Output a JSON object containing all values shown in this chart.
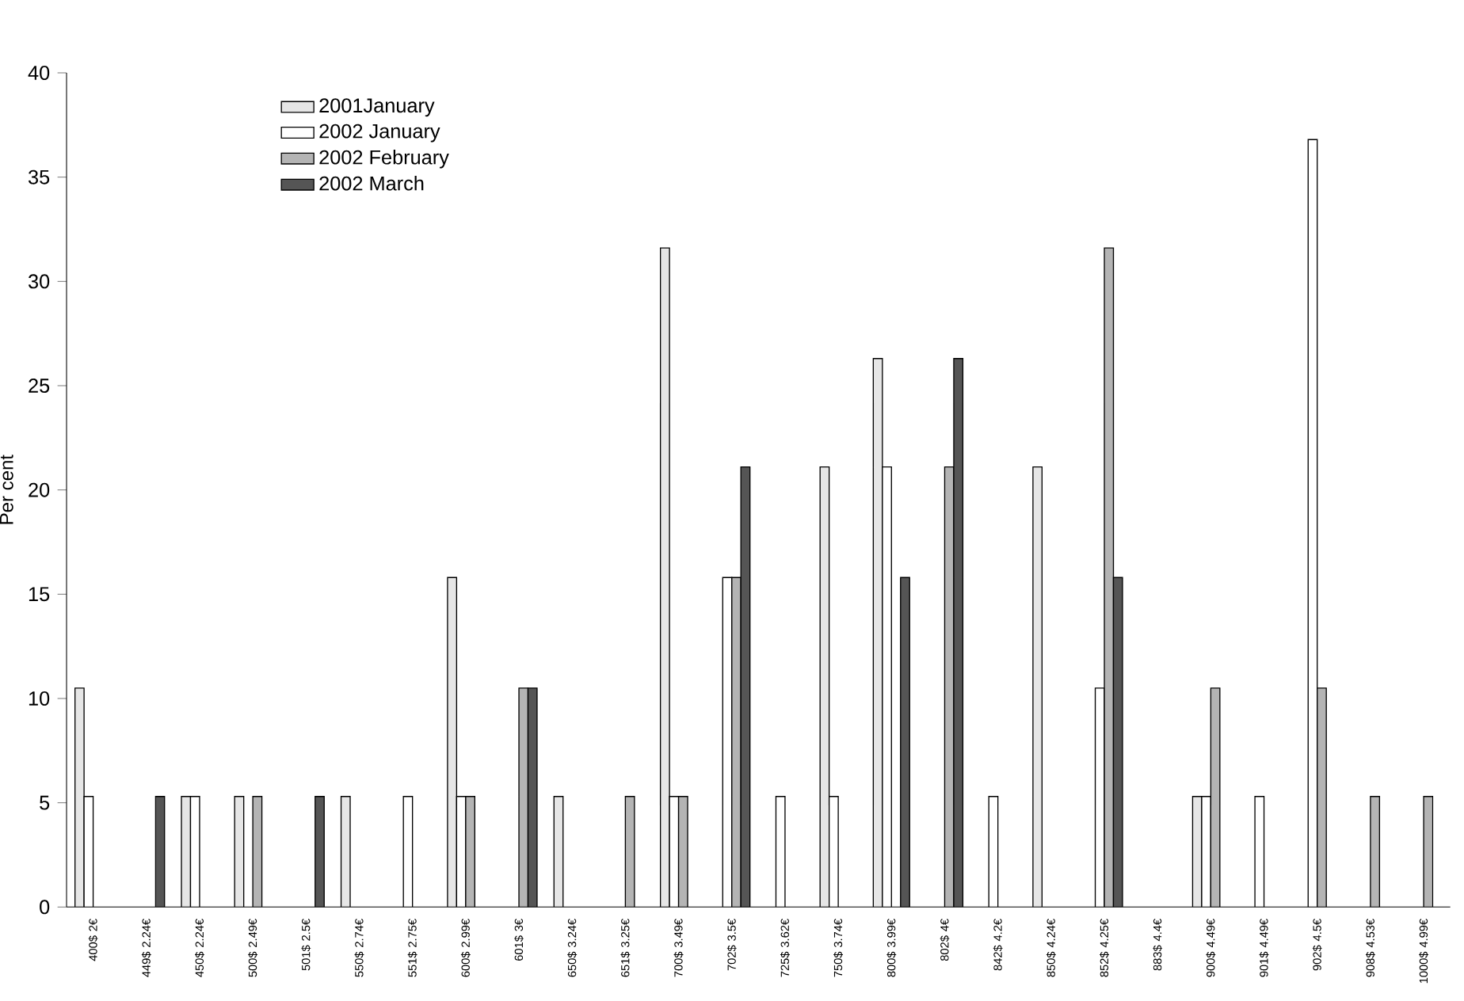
{
  "chart_data": {
    "type": "bar",
    "ylabel": "Per cent",
    "categories": [
      "400$ 2€",
      "449$ 2.24€",
      "450$ 2.24€",
      "500$ 2.49€",
      "501$ 2.5€",
      "550$ 2.74€",
      "551$ 2.75€",
      "600$ 2.99€",
      "601$ 3€",
      "650$ 3.24€",
      "651$ 3.25€",
      "700$ 3.49€",
      "702$ 3.5€",
      "725$ 3.62€",
      "750$ 3.74€",
      "800$ 3.99€",
      "802$ 4€",
      "842$ 4.2€",
      "850$ 4.24€",
      "852$ 4.25€",
      "883$ 4.4€",
      "900$ 4.49€",
      "901$ 4.49€",
      "902$ 4.5€",
      "908$ 4.53€",
      "1000$ 4.99€"
    ],
    "series": [
      {
        "name": "2001January",
        "color": "#e6e6e6",
        "values": [
          10.5,
          null,
          5.3,
          5.3,
          null,
          5.3,
          null,
          15.8,
          null,
          5.3,
          null,
          31.6,
          null,
          null,
          21.1,
          26.3,
          null,
          null,
          21.1,
          null,
          null,
          5.3,
          null,
          null,
          null,
          null
        ]
      },
      {
        "name": "2002 January",
        "color": "#ffffff",
        "values": [
          5.3,
          null,
          5.3,
          null,
          null,
          null,
          5.3,
          5.3,
          null,
          null,
          null,
          5.3,
          15.8,
          5.3,
          5.3,
          21.1,
          null,
          5.3,
          null,
          10.5,
          null,
          5.3,
          5.3,
          36.8,
          null,
          null
        ]
      },
      {
        "name": "2002 February",
        "color": "#b4b4b4",
        "values": [
          null,
          null,
          null,
          5.3,
          null,
          null,
          null,
          5.3,
          10.5,
          null,
          5.3,
          5.3,
          15.8,
          null,
          null,
          null,
          21.1,
          null,
          null,
          31.6,
          null,
          10.5,
          null,
          10.5,
          5.3,
          5.3
        ]
      },
      {
        "name": "2002 March",
        "color": "#555555",
        "values": [
          null,
          5.3,
          null,
          null,
          5.3,
          null,
          null,
          null,
          10.5,
          null,
          null,
          null,
          21.1,
          null,
          null,
          15.8,
          26.3,
          null,
          null,
          15.8,
          null,
          null,
          null,
          null,
          null,
          null
        ]
      }
    ],
    "ylim": [
      0,
      40
    ],
    "yticks": [
      0,
      5,
      10,
      15,
      20,
      25,
      30,
      35,
      40
    ],
    "grid": false,
    "legend": "top left"
  }
}
